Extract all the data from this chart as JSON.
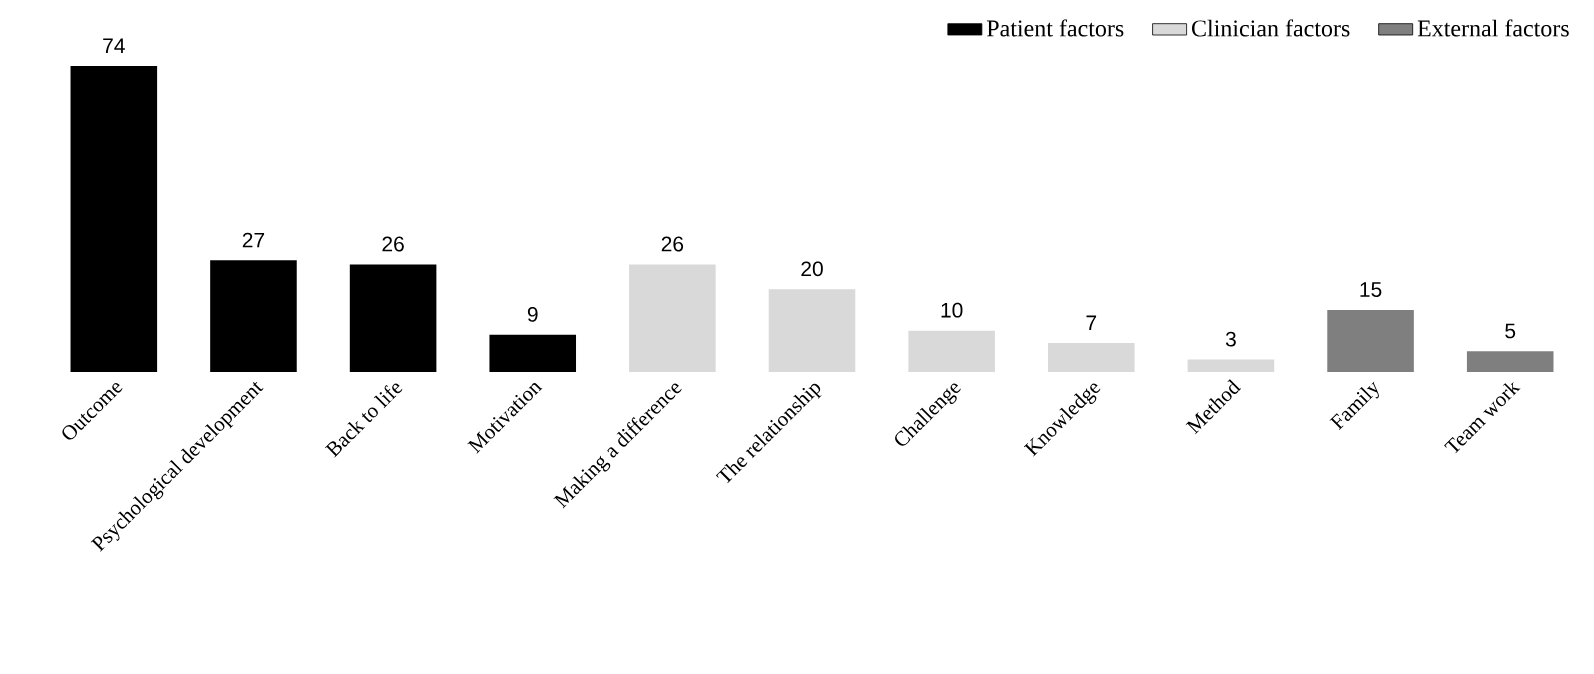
{
  "chart_data": {
    "type": "bar",
    "categories": [
      "Outcome",
      "Psychological development",
      "Back to life",
      "Motivation",
      "Making a difference",
      "The relationship",
      "Challenge",
      "Knowledge",
      "Method",
      "Family",
      "Team work"
    ],
    "series": [
      {
        "name": "Patient factors",
        "color": "#000000",
        "values": [
          74,
          27,
          26,
          9,
          null,
          null,
          null,
          null,
          null,
          null,
          null
        ]
      },
      {
        "name": "Clinician factors",
        "color": "#d9d9d9",
        "values": [
          null,
          null,
          null,
          null,
          26,
          20,
          10,
          7,
          3,
          null,
          null
        ]
      },
      {
        "name": "External factors",
        "color": "#7f7f7f",
        "values": [
          null,
          null,
          null,
          null,
          null,
          null,
          null,
          null,
          null,
          15,
          5
        ]
      }
    ],
    "data_labels": true,
    "legend": "top right"
  }
}
